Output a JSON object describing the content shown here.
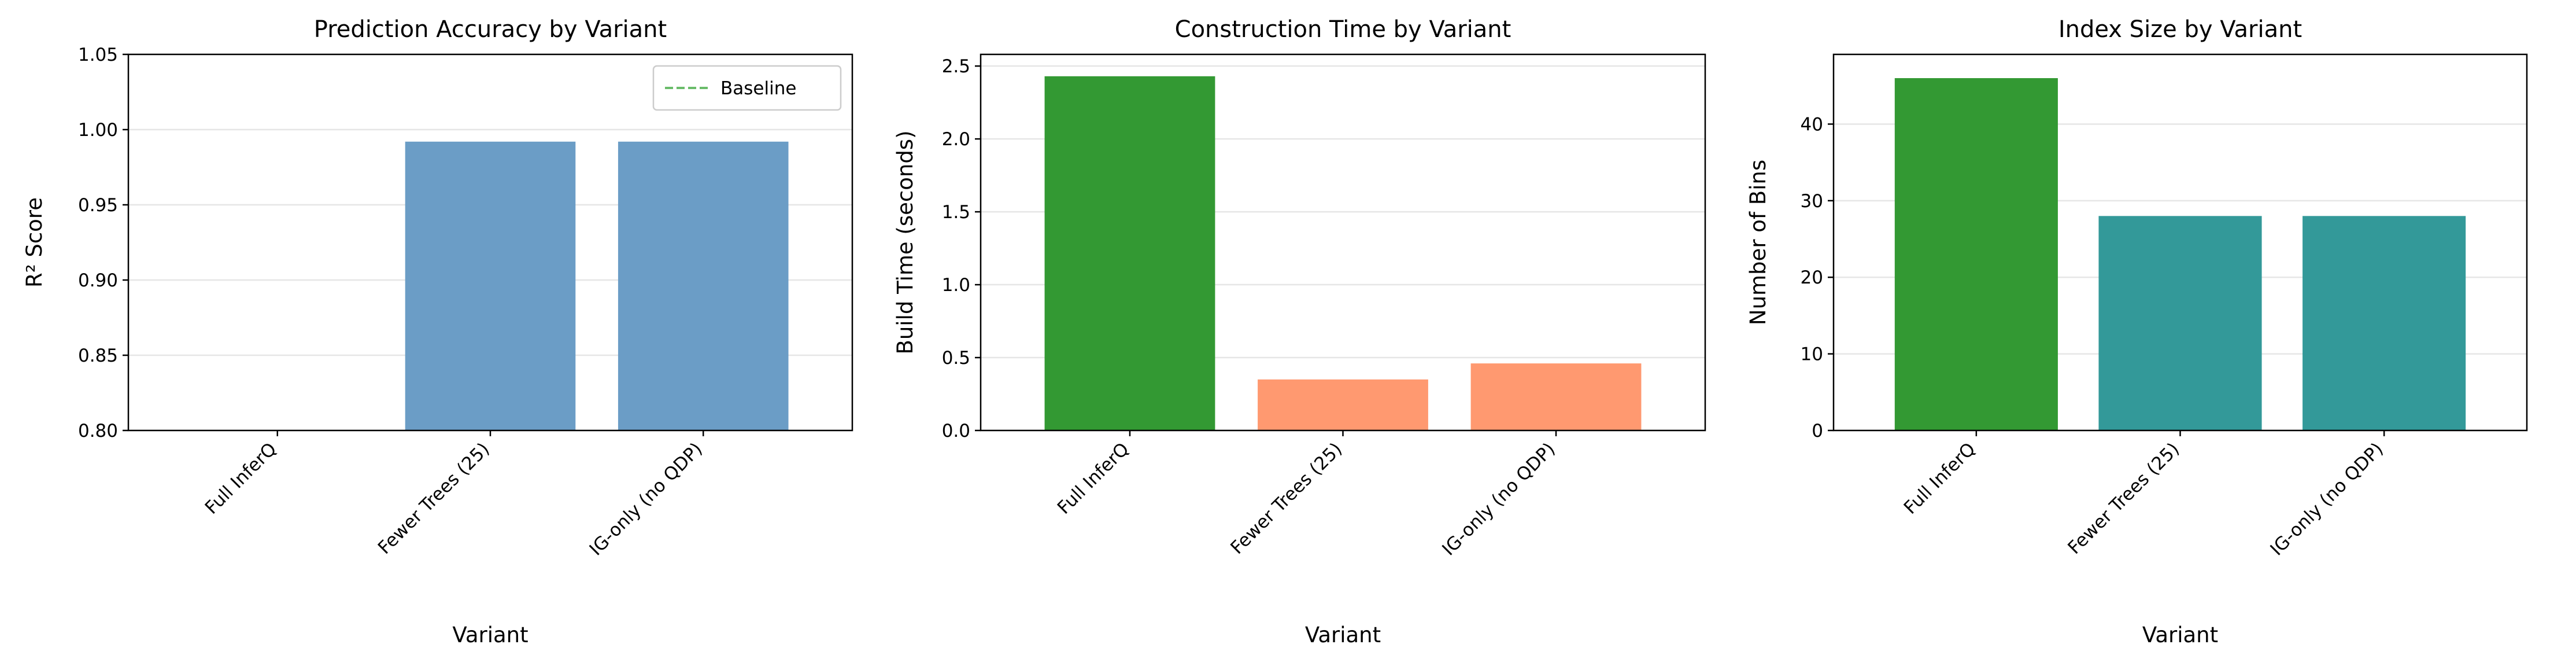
{
  "chart_data": [
    {
      "type": "bar",
      "title": "Prediction Accuracy by Variant",
      "xlabel": "Variant",
      "ylabel": "R² Score",
      "categories": [
        "Full InferQ",
        "Fewer Trees (25)",
        "IG-only (no QDP)"
      ],
      "values": [
        null,
        0.992,
        0.992
      ],
      "colors": [
        "#6b9dc6",
        "#6b9dc6",
        "#6b9dc6"
      ],
      "ylim": [
        0.8,
        1.05
      ],
      "yticks": [
        {
          "value": 0.8,
          "label": "0.80"
        },
        0.85,
        {
          "value": 0.9,
          "label": "0.90"
        },
        0.95,
        {
          "value": 1,
          "label": "1.00"
        },
        1.05
      ],
      "grid": true,
      "legend": "upper right",
      "lines": [
        {
          "name": "Baseline",
          "color": "#2ca02c",
          "style": "dashed"
        }
      ]
    },
    {
      "type": "bar",
      "title": "Construction Time by Variant",
      "xlabel": "Variant",
      "ylabel": "Build Time (seconds)",
      "categories": [
        "Full InferQ",
        "Fewer Trees (25)",
        "IG-only (no QDP)"
      ],
      "values": [
        2.43,
        0.35,
        0.46
      ],
      "colors": [
        "#339933",
        "#ff9970",
        "#ff9970"
      ],
      "ylim": [
        0,
        2.58
      ],
      "yticks": [
        {
          "value": 0,
          "label": "0.0"
        },
        0.5,
        {
          "value": 1,
          "label": "1.0"
        },
        1.5,
        {
          "value": 2,
          "label": "2.0"
        },
        2.5
      ],
      "grid": true
    },
    {
      "type": "bar",
      "title": "Index Size by Variant",
      "xlabel": "Variant",
      "ylabel": "Number of Bins",
      "categories": [
        "Full InferQ",
        "Fewer Trees (25)",
        "IG-only (no QDP)"
      ],
      "values": [
        46,
        28,
        28
      ],
      "colors": [
        "#339933",
        "#339999",
        "#339999"
      ],
      "ylim": [
        0,
        49.1
      ],
      "yticks": [
        0,
        10,
        20,
        30,
        40
      ],
      "grid": true
    }
  ]
}
